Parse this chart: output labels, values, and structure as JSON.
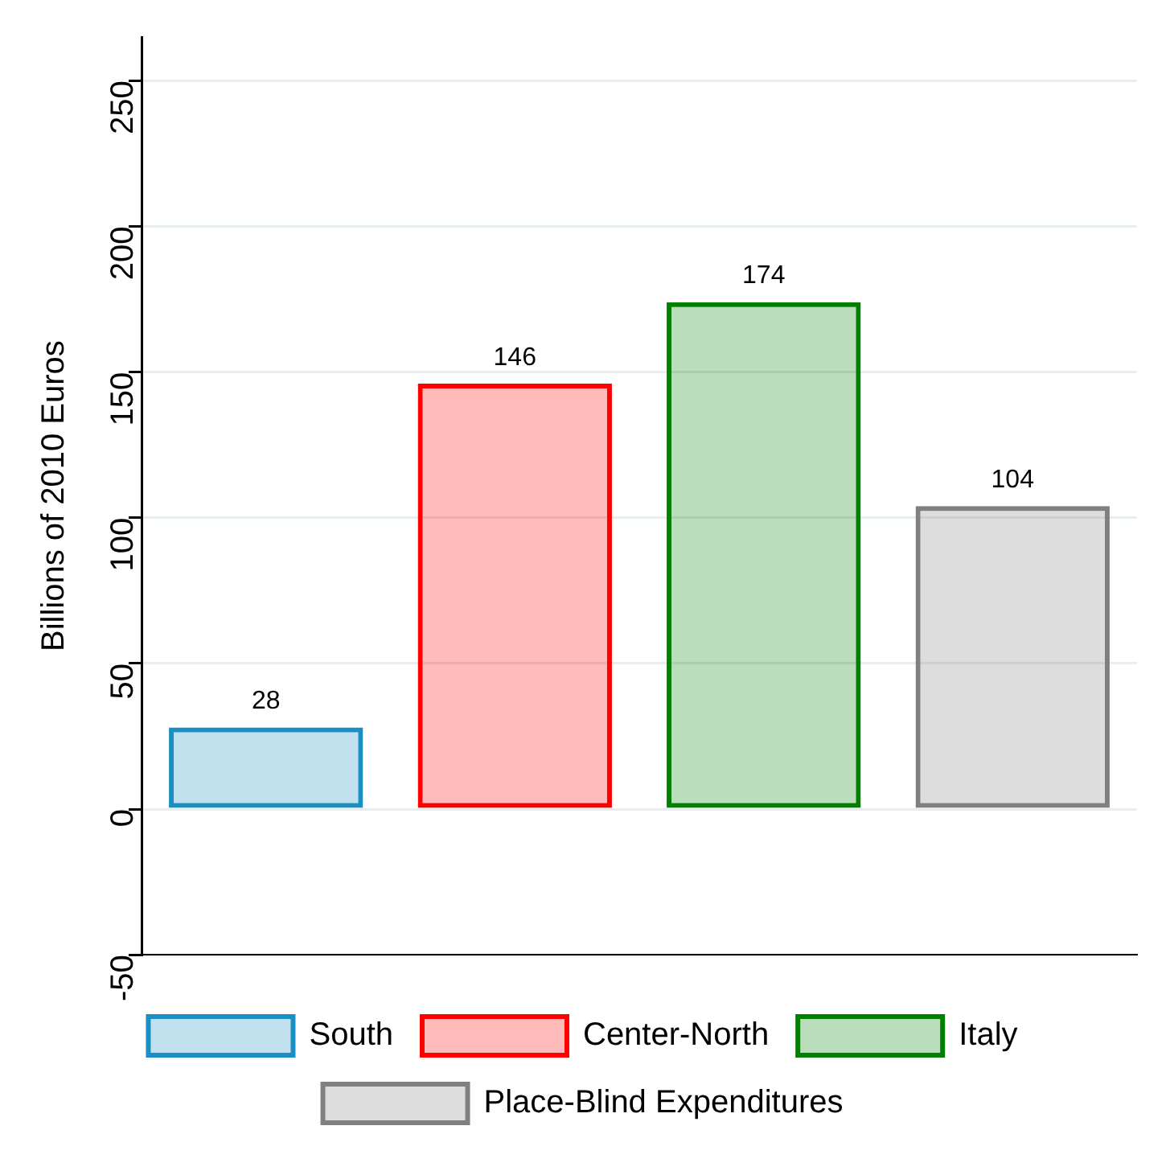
{
  "chart_data": {
    "type": "bar",
    "ylabel": "Billions of 2010 Euros",
    "categories": [
      null,
      null,
      null,
      null
    ],
    "series": [
      {
        "name": "South",
        "color": "#1a8fc4",
        "values": [
          28,
          null,
          null,
          null
        ]
      },
      {
        "name": "Center-North",
        "color": "#ff0000",
        "values": [
          null,
          146,
          null,
          null
        ]
      },
      {
        "name": "Italy",
        "color": "#008000",
        "values": [
          null,
          null,
          174,
          null
        ]
      },
      {
        "name": "Place-Blind Expenditures",
        "color": "#808080",
        "values": [
          null,
          null,
          null,
          104
        ]
      }
    ],
    "ylim": [
      -50,
      265
    ],
    "yticks": [
      -50,
      0,
      50,
      100,
      150,
      200,
      250
    ],
    "grid": "y",
    "legend": "bottom",
    "data_labels": true
  }
}
